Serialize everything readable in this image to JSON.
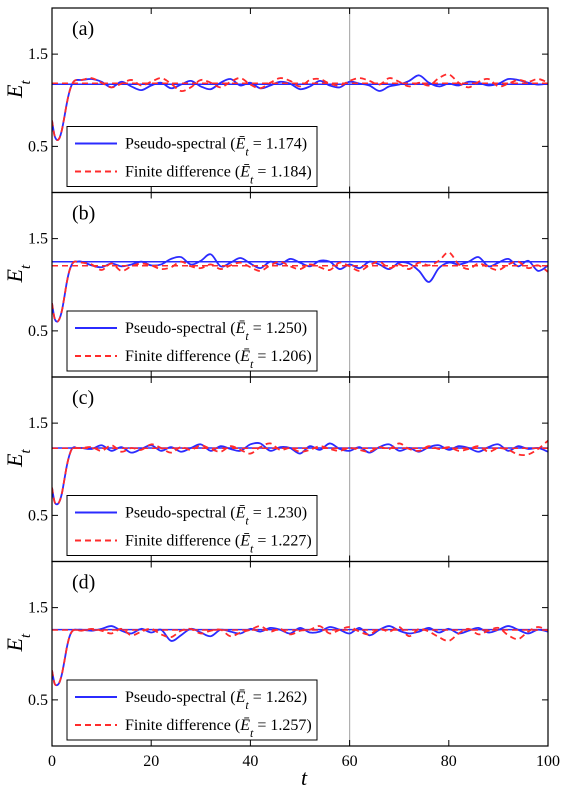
{
  "colors": {
    "pseudo_spectral": "#2b2bff",
    "finite_difference": "#ff2b2b",
    "axis": "#000000",
    "gridline": "#b0b0b0"
  },
  "chart_data": {
    "type": "line",
    "xlabel": "t",
    "ylabel": "E_t",
    "xlim": [
      0,
      100
    ],
    "ylim": [
      0,
      2
    ],
    "x_ticks": [
      "0",
      "20",
      "40",
      "60",
      "80",
      "100"
    ],
    "y_ticks": [
      "0.5",
      "1.5"
    ],
    "x_tick_values": [
      0,
      20,
      40,
      60,
      80,
      100
    ],
    "y_tick_values": [
      0.5,
      1.5
    ],
    "vertical_reference_line_x": 60,
    "legend_placement": "lower-left",
    "x": [
      0,
      0.5,
      1,
      1.5,
      2,
      2.5,
      3,
      3.5,
      4,
      4.5,
      5,
      6,
      8,
      10,
      12,
      14,
      16,
      18,
      20,
      22,
      24,
      26,
      28,
      30,
      32,
      34,
      36,
      38,
      40,
      42,
      44,
      46,
      48,
      50,
      52,
      54,
      56,
      58,
      60,
      62,
      64,
      66,
      68,
      70,
      72,
      74,
      76,
      78,
      80,
      82,
      84,
      86,
      88,
      90,
      92,
      94,
      96,
      98,
      100
    ],
    "panels": [
      {
        "label": "(a)",
        "series": [
          {
            "name": "Pseudo-spectral",
            "legend_mean": "1.174",
            "mean": 1.174,
            "style": "solid",
            "values": [
              0.78,
              0.62,
              0.57,
              0.59,
              0.68,
              0.82,
              0.97,
              1.09,
              1.17,
              1.21,
              1.22,
              1.22,
              1.23,
              1.2,
              1.14,
              1.2,
              1.15,
              1.11,
              1.16,
              1.19,
              1.13,
              1.17,
              1.21,
              1.15,
              1.12,
              1.19,
              1.23,
              1.16,
              1.19,
              1.13,
              1.16,
              1.2,
              1.18,
              1.12,
              1.15,
              1.21,
              1.16,
              1.14,
              1.2,
              1.18,
              1.16,
              1.1,
              1.15,
              1.17,
              1.21,
              1.27,
              1.19,
              1.15,
              1.18,
              1.16,
              1.2,
              1.19,
              1.16,
              1.18,
              1.23,
              1.22,
              1.19,
              1.17,
              1.18
            ]
          },
          {
            "name": "Finite difference",
            "legend_mean": "1.184",
            "mean": 1.184,
            "style": "dashed",
            "values": [
              0.78,
              0.62,
              0.57,
              0.59,
              0.68,
              0.82,
              0.97,
              1.09,
              1.17,
              1.21,
              1.22,
              1.22,
              1.24,
              1.19,
              1.14,
              1.18,
              1.22,
              1.16,
              1.2,
              1.24,
              1.18,
              1.1,
              1.14,
              1.22,
              1.19,
              1.14,
              1.2,
              1.24,
              1.17,
              1.13,
              1.19,
              1.24,
              1.21,
              1.15,
              1.22,
              1.23,
              1.18,
              1.16,
              1.21,
              1.24,
              1.21,
              1.17,
              1.24,
              1.2,
              1.15,
              1.19,
              1.16,
              1.24,
              1.28,
              1.19,
              1.14,
              1.2,
              1.23,
              1.15,
              1.18,
              1.22,
              1.2,
              1.23,
              1.19
            ]
          }
        ]
      },
      {
        "label": "(b)",
        "series": [
          {
            "name": "Pseudo-spectral",
            "legend_mean": "1.250",
            "mean": 1.25,
            "style": "solid",
            "values": [
              0.8,
              0.64,
              0.6,
              0.63,
              0.72,
              0.87,
              1.03,
              1.15,
              1.22,
              1.25,
              1.25,
              1.25,
              1.21,
              1.19,
              1.23,
              1.2,
              1.22,
              1.25,
              1.21,
              1.22,
              1.28,
              1.3,
              1.22,
              1.26,
              1.33,
              1.2,
              1.24,
              1.29,
              1.23,
              1.18,
              1.25,
              1.22,
              1.28,
              1.24,
              1.2,
              1.26,
              1.25,
              1.17,
              1.22,
              1.18,
              1.25,
              1.22,
              1.17,
              1.24,
              1.23,
              1.15,
              1.03,
              1.18,
              1.24,
              1.22,
              1.25,
              1.3,
              1.2,
              1.24,
              1.28,
              1.2,
              1.26,
              1.15,
              1.21
            ]
          },
          {
            "name": "Finite difference",
            "legend_mean": "1.206",
            "mean": 1.206,
            "style": "dashed",
            "values": [
              0.8,
              0.64,
              0.6,
              0.63,
              0.72,
              0.87,
              1.03,
              1.15,
              1.22,
              1.25,
              1.25,
              1.24,
              1.22,
              1.16,
              1.23,
              1.15,
              1.2,
              1.23,
              1.21,
              1.17,
              1.19,
              1.25,
              1.2,
              1.18,
              1.22,
              1.17,
              1.21,
              1.24,
              1.19,
              1.15,
              1.21,
              1.25,
              1.2,
              1.17,
              1.22,
              1.19,
              1.16,
              1.24,
              1.2,
              1.15,
              1.21,
              1.25,
              1.18,
              1.22,
              1.17,
              1.24,
              1.21,
              1.26,
              1.35,
              1.22,
              1.17,
              1.23,
              1.19,
              1.16,
              1.22,
              1.25,
              1.18,
              1.21,
              1.14
            ]
          }
        ]
      },
      {
        "label": "(c)",
        "series": [
          {
            "name": "Pseudo-spectral",
            "legend_mean": "1.230",
            "mean": 1.23,
            "style": "solid",
            "values": [
              0.8,
              0.65,
              0.62,
              0.65,
              0.74,
              0.89,
              1.04,
              1.15,
              1.22,
              1.24,
              1.23,
              1.23,
              1.22,
              1.26,
              1.2,
              1.24,
              1.18,
              1.22,
              1.26,
              1.2,
              1.24,
              1.19,
              1.23,
              1.27,
              1.2,
              1.25,
              1.22,
              1.2,
              1.27,
              1.28,
              1.2,
              1.24,
              1.23,
              1.17,
              1.25,
              1.21,
              1.28,
              1.22,
              1.2,
              1.24,
              1.18,
              1.24,
              1.27,
              1.2,
              1.23,
              1.19,
              1.24,
              1.26,
              1.21,
              1.25,
              1.23,
              1.19,
              1.24,
              1.27,
              1.2,
              1.25,
              1.22,
              1.23,
              1.19
            ]
          },
          {
            "name": "Finite difference",
            "legend_mean": "1.227",
            "mean": 1.227,
            "style": "dashed",
            "values": [
              0.8,
              0.65,
              0.62,
              0.65,
              0.74,
              0.89,
              1.04,
              1.15,
              1.22,
              1.24,
              1.23,
              1.23,
              1.24,
              1.2,
              1.26,
              1.19,
              1.23,
              1.21,
              1.27,
              1.23,
              1.18,
              1.24,
              1.21,
              1.26,
              1.22,
              1.19,
              1.25,
              1.21,
              1.17,
              1.24,
              1.28,
              1.21,
              1.23,
              1.19,
              1.21,
              1.25,
              1.22,
              1.2,
              1.23,
              1.21,
              1.19,
              1.24,
              1.22,
              1.28,
              1.22,
              1.2,
              1.25,
              1.22,
              1.24,
              1.2,
              1.22,
              1.25,
              1.19,
              1.23,
              1.21,
              1.16,
              1.16,
              1.22,
              1.31
            ]
          }
        ]
      },
      {
        "label": "(d)",
        "series": [
          {
            "name": "Pseudo-spectral",
            "legend_mean": "1.262",
            "mean": 1.262,
            "style": "solid",
            "values": [
              0.82,
              0.68,
              0.66,
              0.69,
              0.78,
              0.92,
              1.07,
              1.18,
              1.24,
              1.26,
              1.26,
              1.26,
              1.25,
              1.27,
              1.3,
              1.25,
              1.22,
              1.27,
              1.23,
              1.26,
              1.14,
              1.2,
              1.27,
              1.23,
              1.19,
              1.26,
              1.24,
              1.22,
              1.27,
              1.24,
              1.28,
              1.26,
              1.22,
              1.28,
              1.23,
              1.24,
              1.29,
              1.26,
              1.22,
              1.28,
              1.2,
              1.26,
              1.3,
              1.25,
              1.22,
              1.24,
              1.28,
              1.23,
              1.27,
              1.22,
              1.25,
              1.28,
              1.23,
              1.26,
              1.3,
              1.26,
              1.22,
              1.26,
              1.24
            ]
          },
          {
            "name": "Finite difference",
            "legend_mean": "1.257",
            "mean": 1.257,
            "style": "dashed",
            "values": [
              0.82,
              0.68,
              0.66,
              0.69,
              0.78,
              0.92,
              1.07,
              1.18,
              1.24,
              1.26,
              1.26,
              1.25,
              1.27,
              1.25,
              1.22,
              1.27,
              1.2,
              1.24,
              1.27,
              1.21,
              1.18,
              1.25,
              1.27,
              1.22,
              1.25,
              1.26,
              1.19,
              1.23,
              1.26,
              1.3,
              1.24,
              1.27,
              1.21,
              1.25,
              1.26,
              1.3,
              1.22,
              1.26,
              1.29,
              1.24,
              1.21,
              1.27,
              1.24,
              1.29,
              1.19,
              1.27,
              1.24,
              1.18,
              1.14,
              1.22,
              1.27,
              1.21,
              1.25,
              1.28,
              1.2,
              1.16,
              1.24,
              1.29,
              1.25
            ]
          }
        ]
      }
    ]
  }
}
